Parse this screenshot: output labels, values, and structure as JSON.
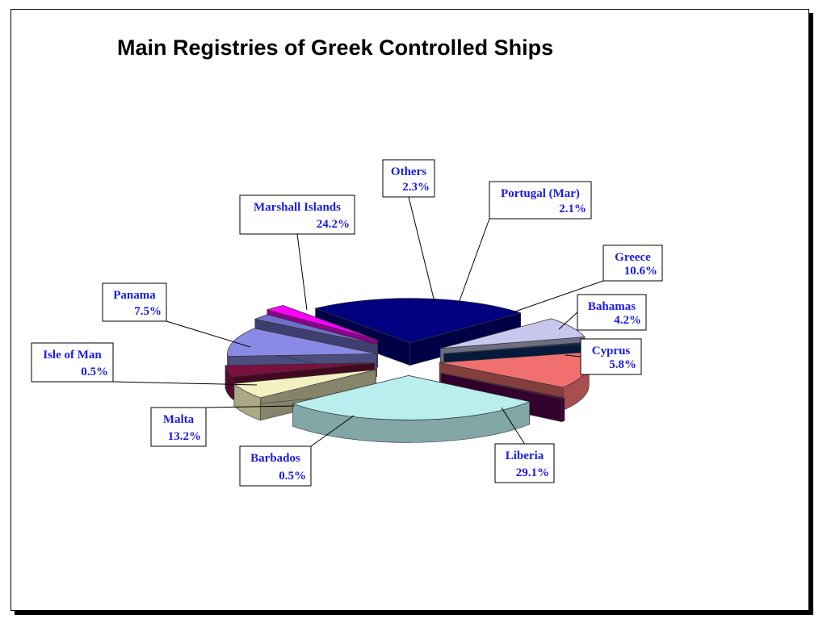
{
  "title": "Main Registries of Greek Controlled Ships",
  "chart_data": {
    "type": "pie",
    "title": "Main Registries of Greek Controlled Ships",
    "slices": [
      {
        "label": "Liberia",
        "value": 29.1,
        "display": "29.1%",
        "color": "#b8eeee"
      },
      {
        "label": "Cyprus",
        "value": 5.8,
        "display": "5.8%",
        "color": "#f4f0c0"
      },
      {
        "label": "Bahamas",
        "value": 4.2,
        "display": "4.2%",
        "color": "#7a1040"
      },
      {
        "label": "Greece",
        "value": 10.6,
        "display": "10.6%",
        "color": "#8a8ae6"
      },
      {
        "label": "Portugal (Mar)",
        "value": 2.1,
        "display": "2.1%",
        "color": "#7070cc"
      },
      {
        "label": "Others",
        "value": 2.3,
        "display": "2.3%",
        "color": "#ff00ff"
      },
      {
        "label": "Marshall Islands",
        "value": 24.2,
        "display": "24.2%",
        "color": "#000080"
      },
      {
        "label": "Panama",
        "value": 7.5,
        "display": "7.5%",
        "color": "#c8c8ee"
      },
      {
        "label": "Isle of Man",
        "value": 0.5,
        "display": "0.5%",
        "color": "#0a3070"
      },
      {
        "label": "Malta",
        "value": 13.2,
        "display": "13.2%",
        "color": "#f07070"
      },
      {
        "label": "Barbados",
        "value": 0.5,
        "display": "0.5%",
        "color": "#5a0050"
      }
    ]
  }
}
